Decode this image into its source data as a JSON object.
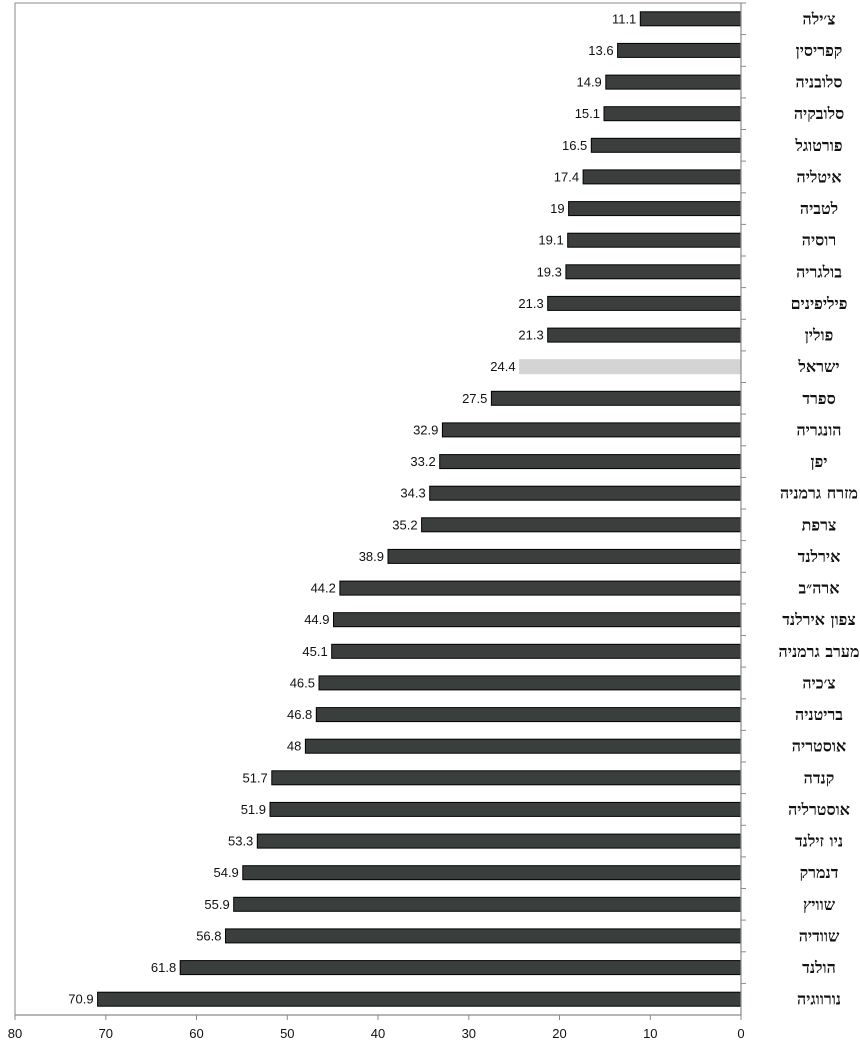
{
  "chart_data": {
    "type": "bar",
    "orientation": "horizontal",
    "x_direction": "reversed",
    "title": "",
    "xlabel": "",
    "ylabel": "",
    "xlim": [
      0,
      80
    ],
    "x_ticks": [
      "80",
      "70",
      "60",
      "50",
      "40",
      "30",
      "20",
      "10",
      "0"
    ],
    "grid": false,
    "legend": "none",
    "colors": {
      "bar": "#3a3f3e",
      "highlight": "#d4d4d4",
      "axis": "#8a8a8a"
    },
    "highlighted_category": "ישראל",
    "categories": [
      "צ׳ילה",
      "קפריסין",
      "סלובניה",
      "סלובקיה",
      "פורטוגל",
      "איטליה",
      "לטביה",
      "רוסיה",
      "בולגריה",
      "פיליפינים",
      "פולין",
      "ישראל",
      "ספרד",
      "הונגריה",
      "יפן",
      "מזרח גרמניה",
      "צרפת",
      "אירלנד",
      "ארה״ב",
      "צפון אירלנד",
      "מערב גרמניה",
      "צ׳כיה",
      "בריטניה",
      "אוסטריה",
      "קנדה",
      "אוסטרליה",
      "ניו זילנד",
      "דנמרק",
      "שוויץ",
      "שוודיה",
      "הולנד",
      "נורווגיה"
    ],
    "values": [
      11.1,
      13.6,
      14.9,
      15.1,
      16.5,
      17.4,
      19,
      19.1,
      19.3,
      21.3,
      21.3,
      24.4,
      27.5,
      32.9,
      33.2,
      34.3,
      35.2,
      38.9,
      44.2,
      44.9,
      45.1,
      46.5,
      46.8,
      48,
      51.7,
      51.9,
      53.3,
      54.9,
      55.9,
      56.8,
      61.8,
      70.9
    ],
    "value_labels": [
      "11.1",
      "13.6",
      "14.9",
      "15.1",
      "16.5",
      "17.4",
      "19",
      "19.1",
      "19.3",
      "21.3",
      "21.3",
      "24.4",
      "27.5",
      "32.9",
      "33.2",
      "34.3",
      "35.2",
      "38.9",
      "44.2",
      "44.9",
      "45.1",
      "46.5",
      "46.8",
      "48",
      "51.7",
      "51.9",
      "53.3",
      "54.9",
      "55.9",
      "56.8",
      "61.8",
      "70.9"
    ]
  }
}
